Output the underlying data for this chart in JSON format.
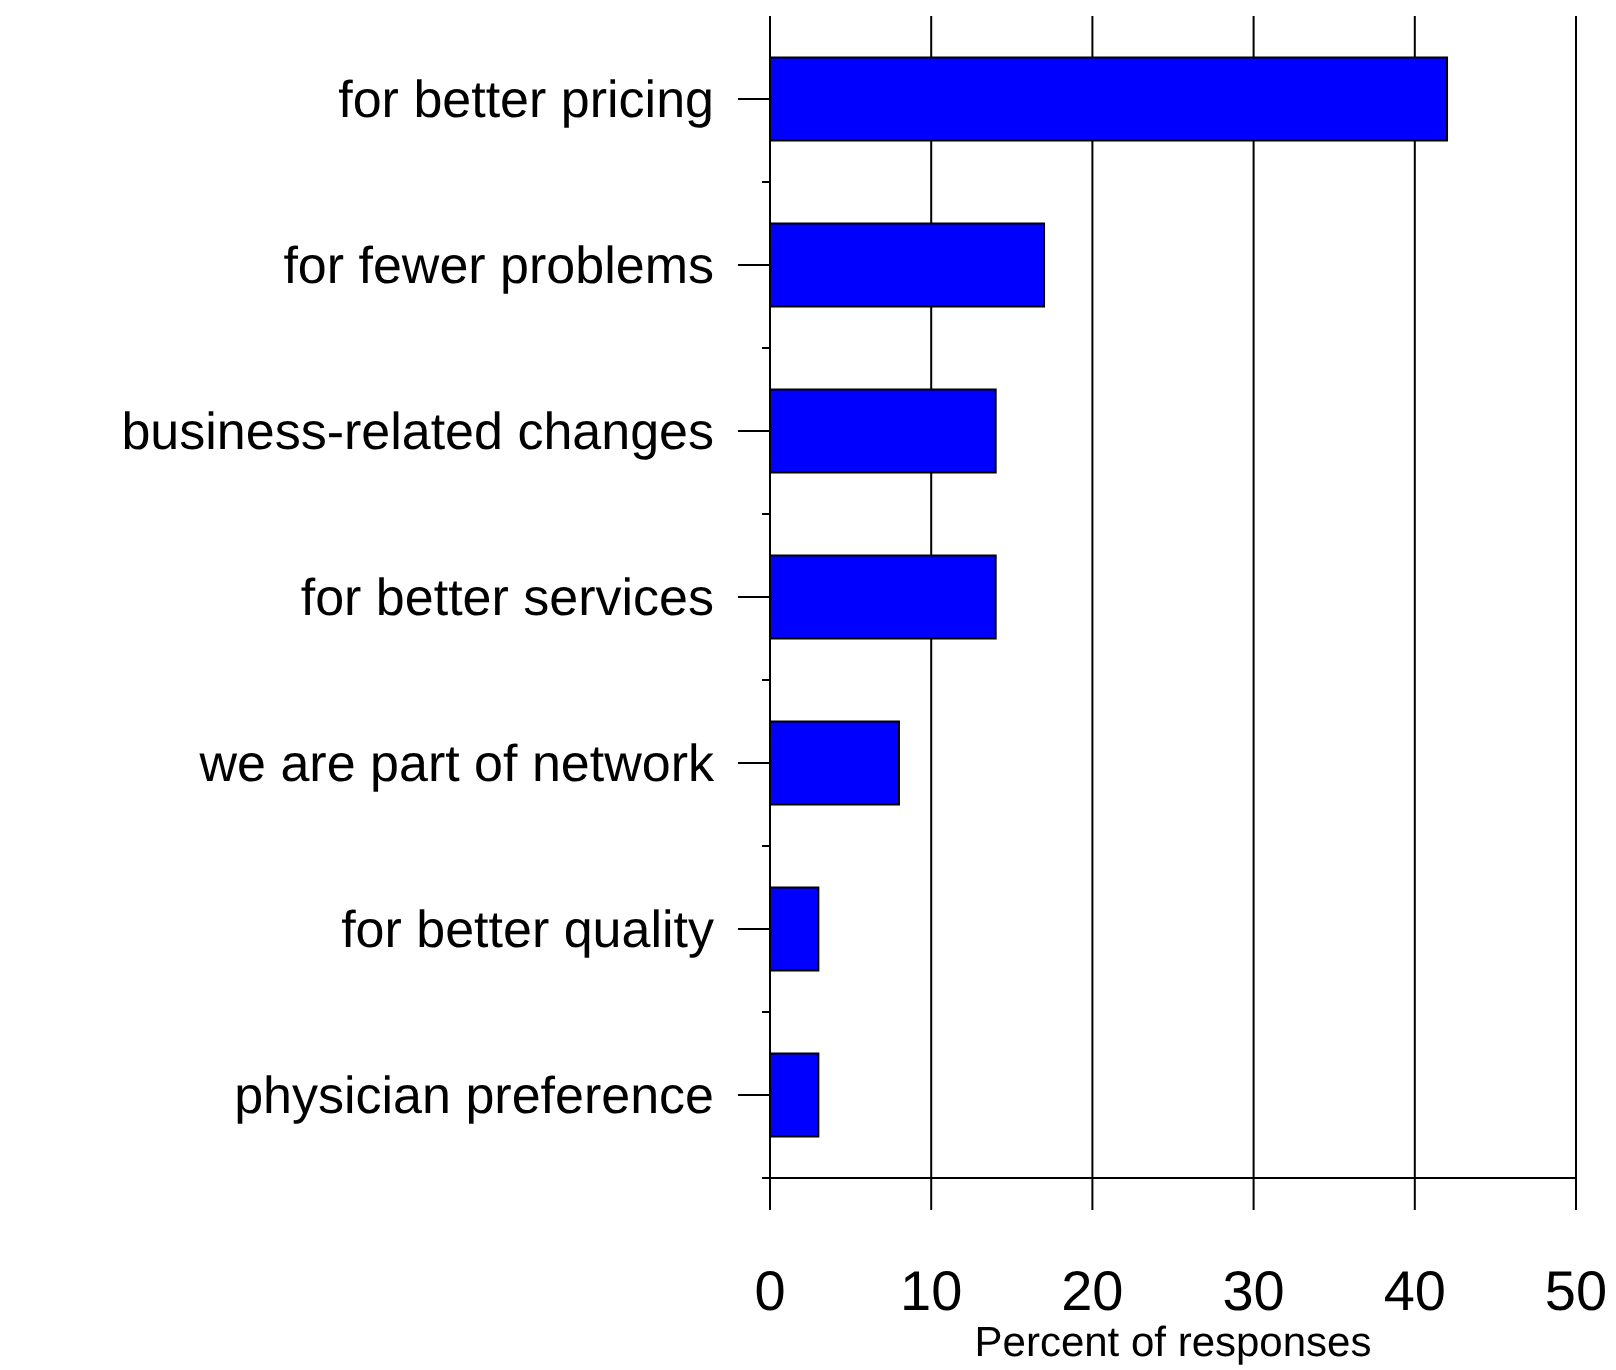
{
  "chart_data": {
    "type": "bar",
    "orientation": "horizontal",
    "xlabel": "Percent of responses",
    "categories": [
      "for better pricing",
      "for fewer problems",
      "business-related changes",
      "for better services",
      "we are part of network",
      "for better quality",
      "physician preference"
    ],
    "values": [
      42,
      17,
      14,
      14,
      8,
      3,
      3
    ],
    "color": "#0000ff",
    "xlim": [
      0,
      50
    ],
    "xticks": [
      0,
      10,
      20,
      30,
      40,
      50
    ],
    "grid": "x"
  }
}
